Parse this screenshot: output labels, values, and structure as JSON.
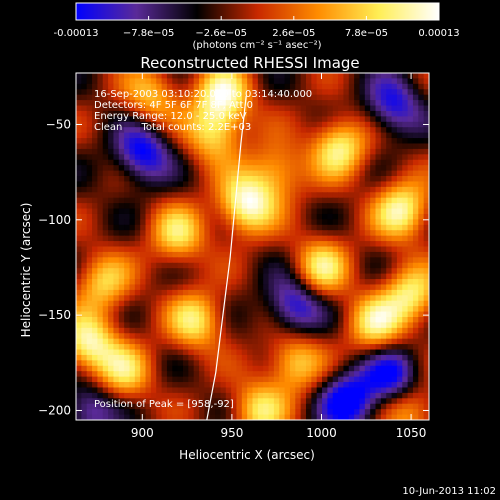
{
  "chart_data": {
    "type": "heatmap",
    "title": "Reconstructed RHESSI Image",
    "xlabel": "Heliocentric X (arcsec)",
    "ylabel": "Heliocentric Y (arcsec)",
    "xlim": [
      863,
      1060
    ],
    "ylim": [
      -205,
      -23
    ],
    "x_ticks": [
      900,
      950,
      1000,
      1050
    ],
    "y_ticks": [
      -50,
      -100,
      -150,
      -200
    ],
    "colorbar": {
      "range": [
        -0.00013,
        0.00013
      ],
      "tick_labels": [
        "-0.00013",
        "−7.8e−05",
        "−2.6e−05",
        "2.6e−05",
        "7.8e−05",
        "0.00013"
      ],
      "tick_values": [
        -0.00013,
        -7.8e-05,
        -2.6e-05,
        2.6e-05,
        7.8e-05,
        0.00013
      ],
      "units_label": "(photons cm⁻² s⁻¹ asec⁻²)",
      "colormap": [
        "#0000ff",
        "#5a2a98",
        "#000000",
        "#c82800",
        "#ff8c00",
        "#ffee55",
        "#ffffff"
      ]
    },
    "annotations": {
      "time_range": "16-Sep-2003 03:10:20.000 to 03:14:40.000",
      "detectors": "Detectors: 4F 5F 6F 7F 8F, Att 0",
      "energy_range": "Energy Range: 12.0 - 25.0 keV",
      "clean_counts": "Clean      Total counts: 2.2E+03",
      "peak_position": "Position of Peak = [958,-92]"
    },
    "peak": [
      958,
      -92
    ],
    "limb_curve": [
      [
        936,
        -205
      ],
      [
        941,
        -180
      ],
      [
        945,
        -150
      ],
      [
        949,
        -120
      ],
      [
        952,
        -90
      ],
      [
        955,
        -60
      ],
      [
        958,
        -35
      ]
    ],
    "sources": [
      {
        "x": 958,
        "y": -92,
        "v": 1.0
      },
      {
        "x": 945,
        "y": -35,
        "v": 0.9
      },
      {
        "x": 905,
        "y": -35,
        "v": 0.6
      },
      {
        "x": 940,
        "y": -55,
        "v": 0.7
      },
      {
        "x": 1010,
        "y": -62,
        "v": 0.85
      },
      {
        "x": 975,
        "y": -75,
        "v": 0.6
      },
      {
        "x": 1045,
        "y": -95,
        "v": 0.9
      },
      {
        "x": 920,
        "y": -108,
        "v": 0.7
      },
      {
        "x": 878,
        "y": -133,
        "v": 0.65
      },
      {
        "x": 1000,
        "y": -125,
        "v": 0.75
      },
      {
        "x": 870,
        "y": -165,
        "v": 0.9
      },
      {
        "x": 930,
        "y": -153,
        "v": 0.75
      },
      {
        "x": 1050,
        "y": -140,
        "v": 0.8
      },
      {
        "x": 1030,
        "y": -155,
        "v": 0.75
      },
      {
        "x": 890,
        "y": -180,
        "v": 0.65
      },
      {
        "x": 985,
        "y": -175,
        "v": 0.7
      },
      {
        "x": 965,
        "y": -200,
        "v": 0.7
      },
      {
        "x": 1050,
        "y": -200,
        "v": 0.6
      },
      {
        "x": 900,
        "y": -65,
        "v": -0.8
      },
      {
        "x": 1040,
        "y": -40,
        "v": -0.7
      },
      {
        "x": 985,
        "y": -145,
        "v": -0.75
      },
      {
        "x": 1015,
        "y": -195,
        "v": -0.9
      },
      {
        "x": 870,
        "y": -200,
        "v": -0.6
      },
      {
        "x": 1040,
        "y": -182,
        "v": -0.8
      }
    ]
  },
  "footer": {
    "date_stamp": "10-Jun-2013 11:02"
  }
}
